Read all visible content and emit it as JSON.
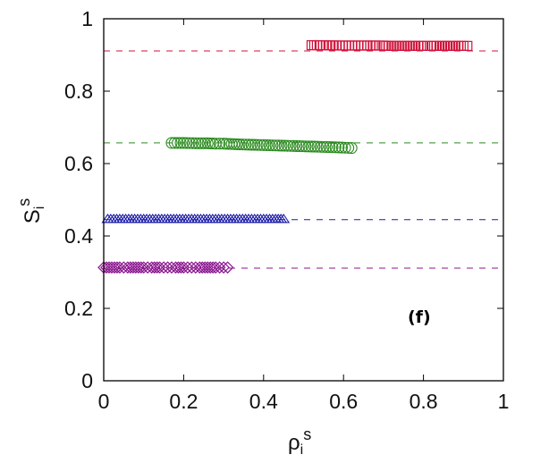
{
  "chart_data": {
    "type": "scatter",
    "title": "",
    "panel_label": "(f)",
    "xlabel": "ρ_i^s",
    "ylabel": "S_i^s",
    "xlim": [
      0,
      1
    ],
    "ylim": [
      0,
      1
    ],
    "x_ticks": [
      "0",
      "0.2",
      "0.4",
      "0.6",
      "0.8",
      "1"
    ],
    "y_ticks": [
      "0",
      "0.2",
      "0.4",
      "0.6",
      "0.8",
      "1"
    ],
    "grid": false,
    "legend": null,
    "series": [
      {
        "name": "red-squares",
        "marker": "square",
        "color": "#d0143c",
        "x_range": [
          0.51,
          0.92
        ],
        "y_mean": 0.925,
        "points": [
          [
            0.52,
            0.927
          ],
          [
            0.54,
            0.927
          ],
          [
            0.59,
            0.926
          ],
          [
            0.66,
            0.926
          ],
          [
            0.68,
            0.926
          ],
          [
            0.7,
            0.926
          ],
          [
            0.72,
            0.925
          ],
          [
            0.74,
            0.925
          ],
          [
            0.76,
            0.925
          ],
          [
            0.78,
            0.925
          ],
          [
            0.8,
            0.925
          ],
          [
            0.82,
            0.925
          ],
          [
            0.84,
            0.925
          ],
          [
            0.86,
            0.925
          ],
          [
            0.88,
            0.925
          ],
          [
            0.9,
            0.925
          ],
          [
            0.91,
            0.925
          ]
        ],
        "reference_line": 0.911
      },
      {
        "name": "green-circles",
        "marker": "circle",
        "color": "#2a8a1e",
        "x_range": [
          0.165,
          0.626
        ],
        "y_mean": 0.65,
        "points": [
          [
            0.17,
            0.657
          ],
          [
            0.2,
            0.657
          ],
          [
            0.23,
            0.656
          ],
          [
            0.26,
            0.656
          ],
          [
            0.28,
            0.655
          ],
          [
            0.3,
            0.655
          ],
          [
            0.32,
            0.654
          ],
          [
            0.34,
            0.653
          ],
          [
            0.37,
            0.652
          ],
          [
            0.4,
            0.651
          ],
          [
            0.43,
            0.65
          ],
          [
            0.46,
            0.649
          ],
          [
            0.49,
            0.648
          ],
          [
            0.52,
            0.647
          ],
          [
            0.55,
            0.646
          ],
          [
            0.58,
            0.645
          ],
          [
            0.62,
            0.643
          ]
        ],
        "reference_line": 0.657
      },
      {
        "name": "blue-triangles",
        "marker": "triangle",
        "color": "#1a1aaa",
        "x_range": [
          0.0,
          0.45
        ],
        "y_mean": 0.447,
        "points": [
          [
            0.01,
            0.447
          ],
          [
            0.04,
            0.447
          ],
          [
            0.07,
            0.447
          ],
          [
            0.1,
            0.447
          ],
          [
            0.13,
            0.447
          ],
          [
            0.16,
            0.447
          ],
          [
            0.19,
            0.447
          ],
          [
            0.22,
            0.447
          ],
          [
            0.25,
            0.447
          ],
          [
            0.28,
            0.447
          ],
          [
            0.31,
            0.447
          ],
          [
            0.34,
            0.447
          ],
          [
            0.37,
            0.447
          ],
          [
            0.4,
            0.447
          ],
          [
            0.43,
            0.447
          ],
          [
            0.45,
            0.447
          ]
        ],
        "reference_line": 0.445
      },
      {
        "name": "purple-diamonds",
        "marker": "diamond",
        "color": "#8b168f",
        "x_range": [
          0.0,
          0.32
        ],
        "y_mean": 0.313,
        "points": [
          [
            0.0,
            0.313
          ],
          [
            0.02,
            0.313
          ],
          [
            0.04,
            0.313
          ],
          [
            0.06,
            0.313
          ],
          [
            0.08,
            0.313
          ],
          [
            0.1,
            0.313
          ],
          [
            0.12,
            0.313
          ],
          [
            0.14,
            0.313
          ],
          [
            0.16,
            0.313
          ],
          [
            0.18,
            0.313
          ],
          [
            0.2,
            0.313
          ],
          [
            0.22,
            0.313
          ],
          [
            0.24,
            0.313
          ],
          [
            0.26,
            0.313
          ],
          [
            0.28,
            0.313
          ],
          [
            0.3,
            0.313
          ],
          [
            0.31,
            0.313
          ]
        ],
        "reference_line": 0.311
      }
    ]
  }
}
